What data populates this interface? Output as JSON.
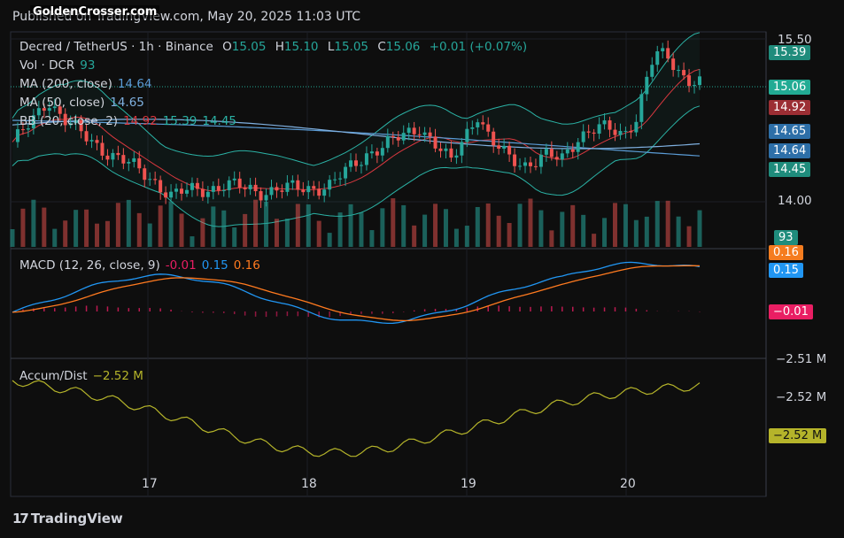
{
  "header": {
    "published": "Published on TradingView.com, May 20, 2025 11:03 UTC",
    "watermark": "GoldenCrosser.com"
  },
  "legend": {
    "symbol": "Decred / TetherUS · 1h · Binance",
    "o_label": "O",
    "o_value": "15.05",
    "h_label": "H",
    "h_value": "15.10",
    "l_label": "L",
    "l_value": "15.05",
    "c_label": "C",
    "c_value": "15.06",
    "change": "+0.01 (+0.07%)",
    "vol_label": "Vol · DCR",
    "vol_value": "93",
    "ma200_label": "MA (200, close)",
    "ma200_value": "14.64",
    "ma50_label": "MA (50, close)",
    "ma50_value": "14.65",
    "bb_label": "BB (20, close, 2)",
    "bb_basis": "14.92",
    "bb_upper": "15.39",
    "bb_lower": "14.45",
    "macd_label": "MACD (12, 26, close, 9)",
    "macd_hist": "-0.01",
    "macd_line": "0.15",
    "macd_signal": "0.16",
    "ad_label": "Accum/Dist",
    "ad_value": "−2.52 M"
  },
  "price_axis": {
    "ticks": [
      "15.50",
      "14.00"
    ],
    "badges": [
      {
        "label": "15.39",
        "color": "#1f8c7c"
      },
      {
        "label": "15.06",
        "color": "#22ab94"
      },
      {
        "label": "14.92",
        "color": "#9c2e34"
      },
      {
        "label": "14.65",
        "color": "#2d6fa8"
      },
      {
        "label": "14.64",
        "color": "#2d6fa8"
      },
      {
        "label": "14.45",
        "color": "#1f8c7c"
      }
    ],
    "volume_badge": "93"
  },
  "macd_axis": {
    "badges": [
      {
        "label": "0.16",
        "color": "#f57c1f"
      },
      {
        "label": "0.15",
        "color": "#2196f3"
      },
      {
        "label": "−0.01",
        "color": "#e91e63"
      }
    ]
  },
  "ad_axis": {
    "ticks": [
      "−2.51 M",
      "−2.52 M"
    ],
    "badge": "−2.52 M",
    "badge_color": "#b5b42a"
  },
  "x_axis": {
    "ticks": [
      "17",
      "18",
      "19",
      "20"
    ]
  },
  "brand": "TradingView",
  "colors": {
    "up": "#26a69a",
    "down": "#ef5350",
    "bb": "#2bb3a6",
    "basis": "#d9383f",
    "ma200": "#5b9cd6",
    "ma50": "#7fb0e0",
    "macd": "#2196f3",
    "signal": "#ff7a1f",
    "hist": "#e91e63",
    "ad": "#b5b42a"
  },
  "chart_data": [
    {
      "type": "candlestick",
      "title": "Decred / TetherUS · 1h · Binance",
      "ylim": [
        13.9,
        15.55
      ],
      "x_ticks": [
        "17",
        "18",
        "19",
        "20"
      ],
      "last": {
        "open": 15.05,
        "high": 15.1,
        "low": 15.05,
        "close": 15.06,
        "volume": 93
      },
      "indicators": {
        "ma200": 14.64,
        "ma50": 14.65,
        "bb_basis": 14.92,
        "bb_upper": 15.39,
        "bb_lower": 14.45
      }
    },
    {
      "type": "line",
      "title": "MACD (12, 26, close, 9)",
      "series": [
        {
          "name": "MACD",
          "last": 0.15
        },
        {
          "name": "Signal",
          "last": 0.16
        },
        {
          "name": "Histogram",
          "last": -0.01
        }
      ]
    },
    {
      "type": "line",
      "title": "Accum/Dist",
      "series": [
        {
          "name": "Accum/Dist",
          "last": -2.52
        }
      ],
      "unit": "M"
    }
  ]
}
